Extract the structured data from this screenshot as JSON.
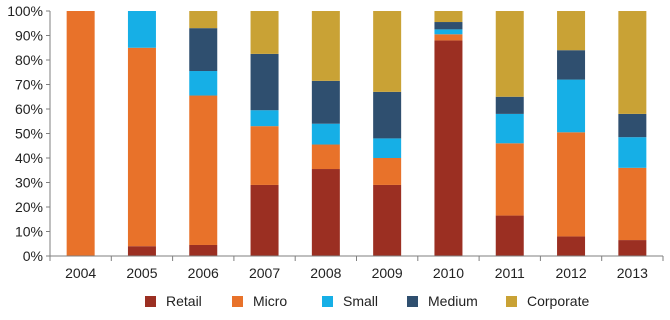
{
  "chart_data": {
    "type": "bar",
    "stacked": true,
    "percent_stacked": true,
    "categories": [
      "2004",
      "2005",
      "2006",
      "2007",
      "2008",
      "2009",
      "2010",
      "2011",
      "2012",
      "2013"
    ],
    "series": [
      {
        "name": "Retail",
        "color": "#9B2F22",
        "values": [
          0,
          4,
          4.5,
          29,
          35.5,
          29,
          88,
          16.5,
          8,
          6.5
        ]
      },
      {
        "name": "Micro",
        "color": "#E8722A",
        "values": [
          100,
          81,
          61,
          24,
          10,
          11,
          2.5,
          29.5,
          42.5,
          29.5
        ]
      },
      {
        "name": "Small",
        "color": "#16AFE6",
        "values": [
          0,
          15,
          10,
          6.5,
          8.5,
          8,
          2,
          12,
          21.5,
          12.5
        ]
      },
      {
        "name": "Medium",
        "color": "#2F4F6F",
        "values": [
          0,
          0,
          17.5,
          23,
          17.5,
          19,
          3,
          7,
          12,
          9.5
        ]
      },
      {
        "name": "Corporate",
        "color": "#C9A235",
        "values": [
          0,
          0,
          7,
          17.5,
          28.5,
          33,
          4.5,
          35,
          16,
          42
        ]
      }
    ],
    "y_ticks": [
      "0%",
      "10%",
      "20%",
      "30%",
      "40%",
      "50%",
      "60%",
      "70%",
      "80%",
      "90%",
      "100%"
    ],
    "ylim": [
      0,
      100
    ],
    "grid": false,
    "legend_position": "bottom"
  }
}
